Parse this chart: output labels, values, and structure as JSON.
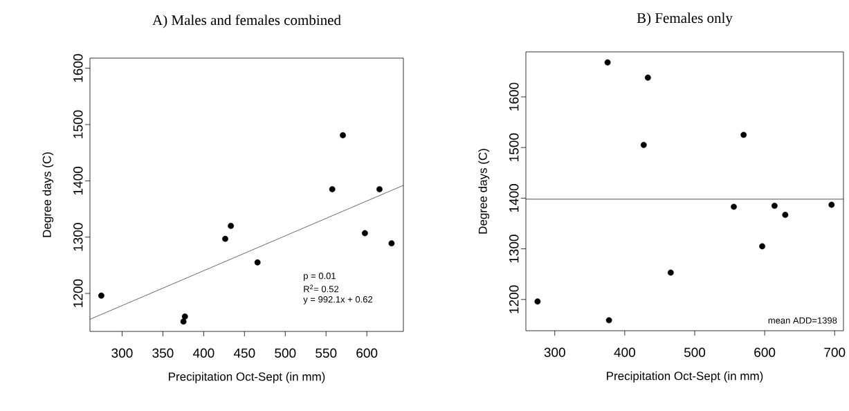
{
  "chart_data": [
    {
      "type": "scatter",
      "title": "A) Males and females combined",
      "xlabel": "Precipitation Oct-Sept (in mm)",
      "ylabel": "Degree days (C)",
      "marker": "circle",
      "grid": false,
      "series": [
        {
          "color": "#000000",
          "x": [
            274.5,
            375.2,
            377,
            426.4,
            433.3,
            466,
            557.6,
            570.6,
            597.6,
            615.5,
            630.3
          ],
          "values": [
            1196,
            1150,
            1159,
            1297,
            1320,
            1255,
            1385,
            1481,
            1307,
            1385,
            1289
          ]
        },
        {
          "type": "line",
          "marker": "none",
          "color": "#000000",
          "x": [
            260.6,
            644.8
          ],
          "values": [
            1154,
            1392
          ]
        }
      ],
      "xlim": [
        260.6,
        644.8
      ],
      "ylim": [
        1132.5,
        1618
      ],
      "xticks": [
        300,
        350,
        400,
        450,
        500,
        550,
        600
      ],
      "yticks": [
        1200,
        1300,
        1400,
        1500,
        1600
      ],
      "annotations": [
        "p = 0.01",
        "R$^{2}$= 0.52",
        "y = 992.1x + 0.62"
      ]
    },
    {
      "type": "scatter",
      "title": "B) Females only",
      "xlabel": "Precipitation Oct-Sept (in mm)",
      "ylabel": "Degree days (C)",
      "marker": "circle",
      "grid": false,
      "series": [
        {
          "color": "#000000",
          "x": [
            275.4,
            375.5,
            377.5,
            433.1,
            427.1,
            465.7,
            555.9,
            569.9,
            596.5,
            614.1,
            629.4,
            695.6
          ],
          "values": [
            1196,
            1668,
            1159,
            1638,
            1505,
            1253,
            1383,
            1525,
            1305,
            1385,
            1367,
            1387
          ]
        }
      ],
      "xlim": [
        258.7,
        712.6
      ],
      "ylim": [
        1138.3,
        1688.8
      ],
      "xticks": [
        300,
        400,
        500,
        600,
        700
      ],
      "yticks": [
        1200,
        1300,
        1400,
        1500,
        1600
      ],
      "ref_lines": [
        {
          "axis": "y",
          "value": 1398,
          "label": "mean ADD=1398",
          "color": "#000000"
        }
      ]
    }
  ]
}
